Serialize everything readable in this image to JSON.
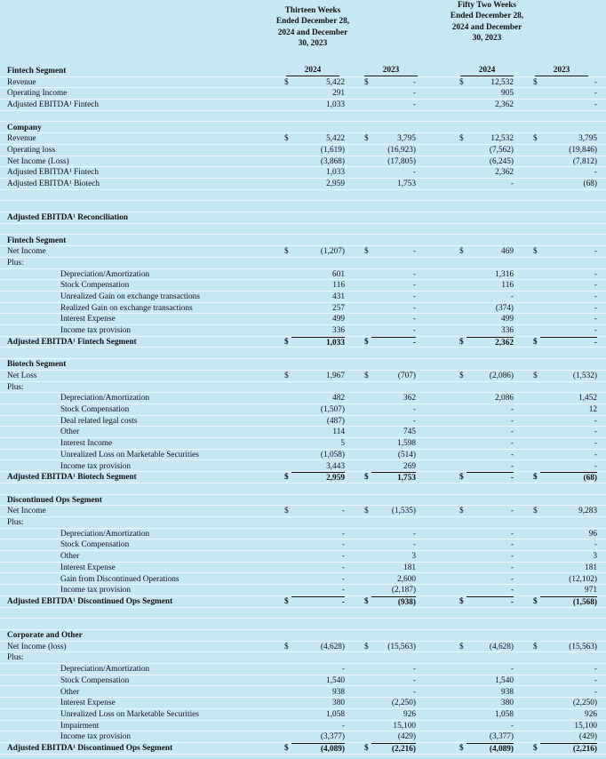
{
  "header": {
    "thirteen": "Thirteen Weeks Ended December 28, 2024 and December 30, 2023",
    "fifty_two": "Fifty Two Weeks Ended December 28, 2024 and December 30, 2023"
  },
  "rows": [
    {
      "kind": "section",
      "label": "Fintech Segment",
      "years": [
        "2024",
        "2023",
        "2024",
        "2023"
      ]
    },
    {
      "kind": "line",
      "label": "Revenue",
      "cells": [
        "$",
        "5,422",
        "$",
        "-",
        "$",
        "12,532",
        "$",
        "-"
      ]
    },
    {
      "kind": "line",
      "label": "Operating Income",
      "cells": [
        null,
        "291",
        null,
        "-",
        null,
        "905",
        null,
        "-"
      ]
    },
    {
      "kind": "line",
      "label": "Adjusted EBITDA¹ Fintech",
      "cells": [
        null,
        "1,033",
        null,
        "-",
        null,
        "2,362",
        null,
        "-"
      ]
    },
    {
      "kind": "blank"
    },
    {
      "kind": "section",
      "label": "Company"
    },
    {
      "kind": "line",
      "label": "Revenue",
      "cells": [
        "$",
        "5,422",
        "$",
        "3,795",
        "$",
        "12,532",
        "$",
        "3,795"
      ]
    },
    {
      "kind": "line",
      "label": "Operating loss",
      "cells": [
        null,
        "(1,619)",
        null,
        "(16,923)",
        null,
        "(7,562)",
        null,
        "(19,846)"
      ]
    },
    {
      "kind": "line",
      "label": "Net Income (Loss)",
      "cells": [
        null,
        "(3,868)",
        null,
        "(17,805)",
        null,
        "(6,245)",
        null,
        "(7,812)"
      ]
    },
    {
      "kind": "line",
      "label": "Adjusted EBITDA¹ Fintech",
      "cells": [
        null,
        "1,033",
        null,
        "-",
        null,
        "2,362",
        null,
        "-"
      ]
    },
    {
      "kind": "line",
      "label": "Adjusted EBITDA¹ Biotech",
      "cells": [
        null,
        "2,959",
        null,
        "1,753",
        null,
        "-",
        null,
        "(68)"
      ]
    },
    {
      "kind": "blank"
    },
    {
      "kind": "blank"
    },
    {
      "kind": "section",
      "label": "Adjusted EBITDA¹ Reconciliation"
    },
    {
      "kind": "blank"
    },
    {
      "kind": "section",
      "label": "Fintech Segment"
    },
    {
      "kind": "line",
      "label": "Net Income",
      "cells": [
        "$",
        "(1,207)",
        "$",
        "-",
        "$",
        "469",
        "$",
        "-"
      ]
    },
    {
      "kind": "line",
      "label": "Plus:"
    },
    {
      "kind": "item",
      "label": "Depreciation/Amortization",
      "cells": [
        null,
        "601",
        null,
        "-",
        null,
        "1,316",
        null,
        "-"
      ]
    },
    {
      "kind": "item",
      "label": "Stock Compensation",
      "cells": [
        null,
        "116",
        null,
        "-",
        null,
        "116",
        null,
        "-"
      ]
    },
    {
      "kind": "item",
      "label": "Unrealized Gain on exchange transactions",
      "cells": [
        null,
        "431",
        null,
        "-",
        null,
        "-",
        null,
        "-"
      ]
    },
    {
      "kind": "item",
      "label": "Realized Gain on exchange transactions",
      "cells": [
        null,
        "257",
        null,
        "-",
        null,
        "(374)",
        null,
        "-"
      ]
    },
    {
      "kind": "item",
      "label": "Interest Expense",
      "cells": [
        null,
        "499",
        null,
        "-",
        null,
        "499",
        null,
        "-"
      ]
    },
    {
      "kind": "item",
      "label": "Income tax provision",
      "cells": [
        null,
        "336",
        null,
        "-",
        null,
        "336",
        null,
        "-"
      ]
    },
    {
      "kind": "total",
      "label": "Adjusted EBITDA¹ Fintech Segment",
      "cells": [
        "$",
        "1,033",
        "$",
        "-",
        "$",
        "2,362",
        "$",
        "-"
      ]
    },
    {
      "kind": "blank"
    },
    {
      "kind": "section",
      "label": "Biotech Segment"
    },
    {
      "kind": "line",
      "label": "Net Loss",
      "cells": [
        "$",
        "1,967",
        "$",
        "(707)",
        "$",
        "(2,086)",
        "$",
        "(1,532)"
      ]
    },
    {
      "kind": "line",
      "label": "Plus:"
    },
    {
      "kind": "item",
      "label": "Depreciation/Amortization",
      "cells": [
        null,
        "482",
        null,
        "362",
        null,
        "2,086",
        null,
        "1,452"
      ]
    },
    {
      "kind": "item",
      "label": "Stock Compensation",
      "cells": [
        null,
        "(1,507)",
        null,
        "-",
        null,
        "-",
        null,
        "12"
      ]
    },
    {
      "kind": "item",
      "label": "Deal related legal costs",
      "cells": [
        null,
        "(487)",
        null,
        "-",
        null,
        "-",
        null,
        "-"
      ]
    },
    {
      "kind": "item",
      "label": "Other",
      "cells": [
        null,
        "114",
        null,
        "745",
        null,
        "-",
        null,
        "-"
      ]
    },
    {
      "kind": "item",
      "label": "Interest Income",
      "cells": [
        null,
        "5",
        null,
        "1,598",
        null,
        "-",
        null,
        "-"
      ]
    },
    {
      "kind": "item",
      "label": "Unrealized Loss on Marketable Securities",
      "cells": [
        null,
        "(1,058)",
        null,
        "(514)",
        null,
        "-",
        null,
        "-"
      ]
    },
    {
      "kind": "item",
      "label": "Income tax provision",
      "cells": [
        null,
        "3,443",
        null,
        "269",
        null,
        "-",
        null,
        "-"
      ]
    },
    {
      "kind": "total",
      "label": "Adjusted EBITDA¹ Biotech Segment",
      "cells": [
        "$",
        "2,959",
        "$",
        "1,753",
        "$",
        "-",
        "$",
        "(68)"
      ]
    },
    {
      "kind": "blank"
    },
    {
      "kind": "section",
      "label": "Discontinued Ops Segment"
    },
    {
      "kind": "line",
      "label": "Net Income",
      "cells": [
        "$",
        "-",
        "$",
        "(1,535)",
        "$",
        "-",
        "$",
        "9,283"
      ]
    },
    {
      "kind": "line",
      "label": "Plus:"
    },
    {
      "kind": "item",
      "label": "Depreciation/Amortization",
      "cells": [
        null,
        "-",
        null,
        "-",
        null,
        "-",
        null,
        "96"
      ]
    },
    {
      "kind": "item",
      "label": "Stock Compensation",
      "cells": [
        null,
        "-",
        null,
        "-",
        null,
        "-",
        null,
        "-"
      ]
    },
    {
      "kind": "item",
      "label": "Other",
      "cells": [
        null,
        "-",
        null,
        "3",
        null,
        "-",
        null,
        "3"
      ]
    },
    {
      "kind": "item",
      "label": "Interest Expense",
      "cells": [
        null,
        "-",
        null,
        "181",
        null,
        "-",
        null,
        "181"
      ]
    },
    {
      "kind": "item",
      "label": "Gain from Discontinued Operations",
      "cells": [
        null,
        "-",
        null,
        "2,600",
        null,
        "-",
        null,
        "(12,102)"
      ]
    },
    {
      "kind": "item",
      "label": "Income tax provision",
      "cells": [
        null,
        "-",
        null,
        "(2,187)",
        null,
        "-",
        null,
        "971"
      ]
    },
    {
      "kind": "total",
      "label": "Adjusted EBITDA¹ Discontinued Ops Segment",
      "cells": [
        "$",
        "-",
        "$",
        "(938)",
        "$",
        "-",
        "$",
        "(1,568)"
      ]
    },
    {
      "kind": "blank"
    },
    {
      "kind": "blank"
    },
    {
      "kind": "section",
      "label": "Corporate and Other"
    },
    {
      "kind": "line",
      "label": "Net Income (loss)",
      "cells": [
        "$",
        "(4,628)",
        "$",
        "(15,563)",
        "$",
        "(4,628)",
        "$",
        "(15,563)"
      ]
    },
    {
      "kind": "line",
      "label": "Plus:"
    },
    {
      "kind": "item",
      "label": "Depreciation/Amortization",
      "cells": [
        null,
        "-",
        null,
        "-",
        null,
        "-",
        null,
        "-"
      ]
    },
    {
      "kind": "item",
      "label": "Stock Compensation",
      "cells": [
        null,
        "1,540",
        null,
        "-",
        null,
        "1,540",
        null,
        "-"
      ]
    },
    {
      "kind": "item",
      "label": "Other",
      "cells": [
        null,
        "938",
        null,
        "-",
        null,
        "938",
        null,
        "-"
      ]
    },
    {
      "kind": "item",
      "label": "Interest Expense",
      "cells": [
        null,
        "380",
        null,
        "(2,250)",
        null,
        "380",
        null,
        "(2,250)"
      ]
    },
    {
      "kind": "item",
      "label": "Unrealized Loss on Marketable Securities",
      "cells": [
        null,
        "1,058",
        null,
        "926",
        null,
        "1,058",
        null,
        "926"
      ]
    },
    {
      "kind": "item",
      "label": "Impairment",
      "cells": [
        null,
        "-",
        null,
        "15,100",
        null,
        "-",
        null,
        "15,100"
      ]
    },
    {
      "kind": "item",
      "label": "Income tax provision",
      "cells": [
        null,
        "(3,377)",
        null,
        "(429)",
        null,
        "(3,377)",
        null,
        "(429)"
      ]
    },
    {
      "kind": "total",
      "label": "Adjusted EBITDA¹ Discontinued Ops Segment",
      "cells": [
        "$",
        "(4,089)",
        "$",
        "(2,216)",
        "$",
        "(4,089)",
        "$",
        "(2,216)"
      ]
    }
  ]
}
